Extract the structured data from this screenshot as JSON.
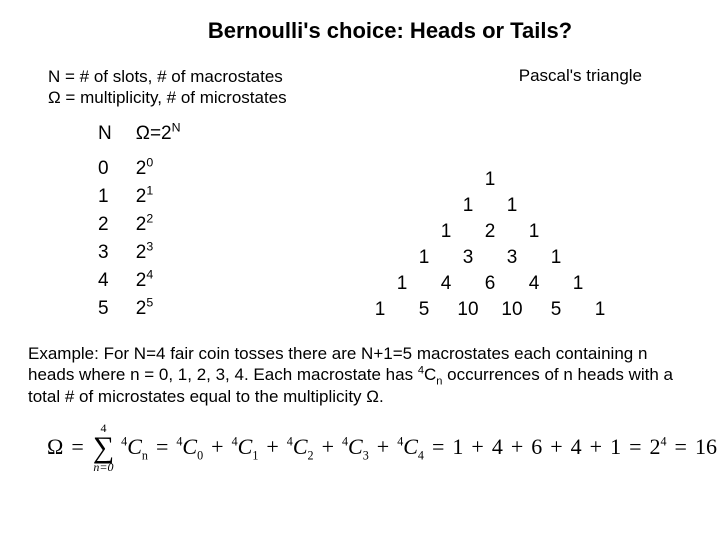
{
  "title": "Bernoulli's choice: Heads or Tails?",
  "defs": {
    "line1_a": "N = # of slots, # of macrostates",
    "line2_a": "Ω = multiplicity, # of microstates",
    "right": "Pascal's triangle"
  },
  "table": {
    "head_N": "N",
    "head_Omega_prefix": "Ω=2",
    "head_Omega_sup": "N",
    "rows": [
      {
        "n": "0",
        "base": "2",
        "exp": "0"
      },
      {
        "n": "1",
        "base": "2",
        "exp": "1"
      },
      {
        "n": "2",
        "base": "2",
        "exp": "2"
      },
      {
        "n": "3",
        "base": "2",
        "exp": "3"
      },
      {
        "n": "4",
        "base": "2",
        "exp": "4"
      },
      {
        "n": "5",
        "base": "2",
        "exp": "5"
      }
    ]
  },
  "triangle": {
    "rows": [
      [
        "1"
      ],
      [
        "1",
        "1"
      ],
      [
        "1",
        "2",
        "1"
      ],
      [
        "1",
        "3",
        "3",
        "1"
      ],
      [
        "1",
        "4",
        "6",
        "4",
        "1"
      ],
      [
        "1",
        "5",
        "10",
        "10",
        "5",
        "1"
      ]
    ]
  },
  "explain": {
    "p1a": "Example: For N=4 fair coin tosses there are N+1=5 macrostates each containing n heads where n = 0, 1, 2, 3, 4. Each macrostate has ",
    "p1_sup": "4",
    "p1_C": "C",
    "p1_sub": "n",
    "p1b": " occurrences of n heads with a total # of microstates equal to the multiplicity Ω."
  },
  "formula": {
    "omega": "Ω",
    "eq": "=",
    "sigma_top": "4",
    "sigma_bot": "n=0",
    "presup": "4",
    "C": "C",
    "sub_n": "n",
    "subs": [
      "0",
      "1",
      "2",
      "3",
      "4"
    ],
    "plus": "+",
    "nums": [
      "1",
      "4",
      "6",
      "4",
      "1"
    ],
    "pow_base": "2",
    "pow_exp": "4",
    "result": "16"
  },
  "colors": {
    "bg": "#ffffff",
    "fg": "#000000"
  }
}
